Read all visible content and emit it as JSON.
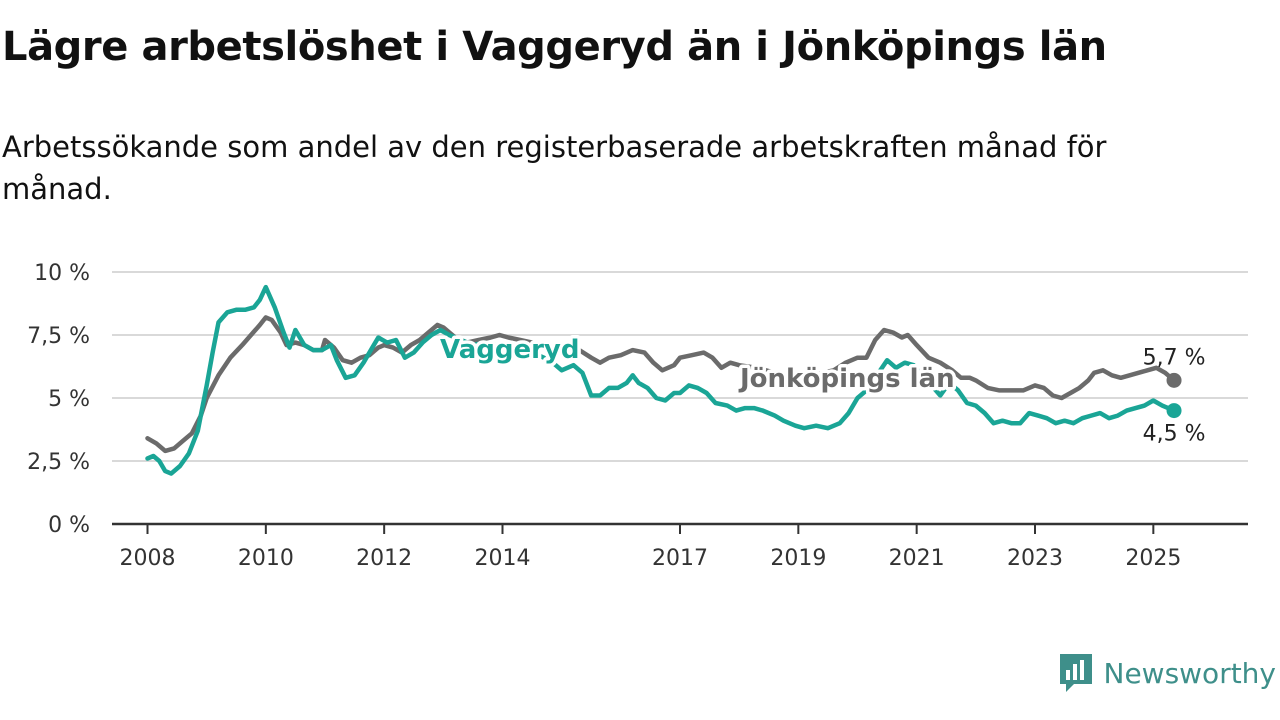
{
  "title": "Lägre arbetslöshet i Vaggeryd än i Jönköpings län",
  "subtitle": "Arbetssökande som andel av den registerbaserade arbetskraften månad för månad.",
  "brand": {
    "name": "Newsworthy",
    "icon": "bar-chart-speech-bubble-icon"
  },
  "colors": {
    "vaggeryd": "#1aa596",
    "lan": "#6b6b6b",
    "grid": "#d9d9d9",
    "axis": "#333333",
    "brand": "#3e8f8a"
  },
  "chart_data": {
    "type": "line",
    "title": "Lägre arbetslöshet i Vaggeryd än i Jönköpings län",
    "subtitle": "Arbetssökande som andel av den registerbaserade arbetskraften månad för månad.",
    "ylim": [
      0,
      10
    ],
    "xlim": [
      2007.4,
      2026.6
    ],
    "y_ticks": [
      {
        "value": 0,
        "label": "0 %"
      },
      {
        "value": 2.5,
        "label": "2,5 %"
      },
      {
        "value": 5,
        "label": "5 %"
      },
      {
        "value": 7.5,
        "label": "7,5 %"
      },
      {
        "value": 10,
        "label": "10 %"
      }
    ],
    "x_ticks": [
      {
        "value": 2008,
        "label": "2008"
      },
      {
        "value": 2010,
        "label": "2010"
      },
      {
        "value": 2012,
        "label": "2012"
      },
      {
        "value": 2014,
        "label": "2014"
      },
      {
        "value": 2017,
        "label": "2017"
      },
      {
        "value": 2019,
        "label": "2019"
      },
      {
        "value": 2021,
        "label": "2021"
      },
      {
        "value": 2023,
        "label": "2023"
      },
      {
        "value": 2025,
        "label": "2025"
      }
    ],
    "grid": true,
    "series": [
      {
        "name": "Jönköpings län",
        "color": "#6b6b6b",
        "end_label": "5,7 %",
        "points": [
          [
            2008.0,
            3.4
          ],
          [
            2008.15,
            3.2
          ],
          [
            2008.3,
            2.9
          ],
          [
            2008.45,
            3.0
          ],
          [
            2008.6,
            3.3
          ],
          [
            2008.75,
            3.6
          ],
          [
            2008.9,
            4.3
          ],
          [
            2009.0,
            5.0
          ],
          [
            2009.2,
            5.9
          ],
          [
            2009.4,
            6.6
          ],
          [
            2009.6,
            7.1
          ],
          [
            2009.75,
            7.5
          ],
          [
            2009.9,
            7.9
          ],
          [
            2010.0,
            8.2
          ],
          [
            2010.1,
            8.1
          ],
          [
            2010.25,
            7.6
          ],
          [
            2010.35,
            7.1
          ],
          [
            2010.5,
            7.2
          ],
          [
            2010.65,
            7.1
          ],
          [
            2010.8,
            6.9
          ],
          [
            2010.95,
            6.9
          ],
          [
            2011.0,
            7.3
          ],
          [
            2011.15,
            7.0
          ],
          [
            2011.3,
            6.5
          ],
          [
            2011.45,
            6.4
          ],
          [
            2011.6,
            6.6
          ],
          [
            2011.75,
            6.7
          ],
          [
            2011.9,
            7.0
          ],
          [
            2012.0,
            7.1
          ],
          [
            2012.15,
            7.0
          ],
          [
            2012.3,
            6.8
          ],
          [
            2012.45,
            7.1
          ],
          [
            2012.6,
            7.3
          ],
          [
            2012.75,
            7.6
          ],
          [
            2012.9,
            7.9
          ],
          [
            2013.0,
            7.8
          ],
          [
            2013.2,
            7.4
          ],
          [
            2013.4,
            7.2
          ],
          [
            2013.6,
            7.3
          ],
          [
            2013.8,
            7.4
          ],
          [
            2013.95,
            7.5
          ],
          [
            2014.1,
            7.4
          ],
          [
            2014.3,
            7.3
          ],
          [
            2014.5,
            7.2
          ],
          [
            2014.7,
            7.1
          ],
          [
            2014.9,
            7.0
          ],
          [
            2015.1,
            7.0
          ],
          [
            2015.3,
            6.9
          ],
          [
            2015.5,
            6.6
          ],
          [
            2015.65,
            6.4
          ],
          [
            2015.8,
            6.6
          ],
          [
            2016.0,
            6.7
          ],
          [
            2016.2,
            6.9
          ],
          [
            2016.4,
            6.8
          ],
          [
            2016.55,
            6.4
          ],
          [
            2016.7,
            6.1
          ],
          [
            2016.9,
            6.3
          ],
          [
            2017.0,
            6.6
          ],
          [
            2017.2,
            6.7
          ],
          [
            2017.4,
            6.8
          ],
          [
            2017.55,
            6.6
          ],
          [
            2017.7,
            6.2
          ],
          [
            2017.85,
            6.4
          ],
          [
            2018.0,
            6.3
          ],
          [
            2018.3,
            6.2
          ],
          [
            2018.6,
            6.0
          ],
          [
            2018.9,
            5.8
          ],
          [
            2019.0,
            5.7
          ],
          [
            2019.2,
            5.8
          ],
          [
            2019.4,
            6.0
          ],
          [
            2019.6,
            6.1
          ],
          [
            2019.8,
            6.4
          ],
          [
            2020.0,
            6.6
          ],
          [
            2020.15,
            6.6
          ],
          [
            2020.3,
            7.3
          ],
          [
            2020.45,
            7.7
          ],
          [
            2020.6,
            7.6
          ],
          [
            2020.75,
            7.4
          ],
          [
            2020.85,
            7.5
          ],
          [
            2021.0,
            7.1
          ],
          [
            2021.2,
            6.6
          ],
          [
            2021.4,
            6.4
          ],
          [
            2021.6,
            6.1
          ],
          [
            2021.75,
            5.8
          ],
          [
            2021.9,
            5.8
          ],
          [
            2022.0,
            5.7
          ],
          [
            2022.2,
            5.4
          ],
          [
            2022.4,
            5.3
          ],
          [
            2022.6,
            5.3
          ],
          [
            2022.8,
            5.3
          ],
          [
            2023.0,
            5.5
          ],
          [
            2023.15,
            5.4
          ],
          [
            2023.3,
            5.1
          ],
          [
            2023.45,
            5.0
          ],
          [
            2023.6,
            5.2
          ],
          [
            2023.75,
            5.4
          ],
          [
            2023.9,
            5.7
          ],
          [
            2024.0,
            6.0
          ],
          [
            2024.15,
            6.1
          ],
          [
            2024.3,
            5.9
          ],
          [
            2024.45,
            5.8
          ],
          [
            2024.6,
            5.9
          ],
          [
            2024.75,
            6.0
          ],
          [
            2024.9,
            6.1
          ],
          [
            2025.05,
            6.2
          ],
          [
            2025.2,
            6.0
          ],
          [
            2025.35,
            5.7
          ]
        ]
      },
      {
        "name": "Vaggeryd",
        "color": "#1aa596",
        "end_label": "4,5 %",
        "points": [
          [
            2008.0,
            2.6
          ],
          [
            2008.1,
            2.7
          ],
          [
            2008.2,
            2.5
          ],
          [
            2008.3,
            2.1
          ],
          [
            2008.4,
            2.0
          ],
          [
            2008.55,
            2.3
          ],
          [
            2008.7,
            2.8
          ],
          [
            2008.85,
            3.7
          ],
          [
            2009.0,
            5.5
          ],
          [
            2009.1,
            6.8
          ],
          [
            2009.2,
            8.0
          ],
          [
            2009.35,
            8.4
          ],
          [
            2009.5,
            8.5
          ],
          [
            2009.65,
            8.5
          ],
          [
            2009.8,
            8.6
          ],
          [
            2009.9,
            8.9
          ],
          [
            2010.0,
            9.4
          ],
          [
            2010.15,
            8.6
          ],
          [
            2010.3,
            7.6
          ],
          [
            2010.4,
            7.0
          ],
          [
            2010.5,
            7.7
          ],
          [
            2010.65,
            7.1
          ],
          [
            2010.8,
            6.9
          ],
          [
            2010.95,
            6.9
          ],
          [
            2011.1,
            7.1
          ],
          [
            2011.2,
            6.5
          ],
          [
            2011.35,
            5.8
          ],
          [
            2011.5,
            5.9
          ],
          [
            2011.65,
            6.4
          ],
          [
            2011.8,
            7.0
          ],
          [
            2011.9,
            7.4
          ],
          [
            2012.05,
            7.2
          ],
          [
            2012.2,
            7.3
          ],
          [
            2012.35,
            6.6
          ],
          [
            2012.5,
            6.8
          ],
          [
            2012.65,
            7.2
          ],
          [
            2012.8,
            7.5
          ],
          [
            2012.95,
            7.7
          ],
          [
            2013.1,
            7.5
          ],
          [
            2013.3,
            7.3
          ],
          [
            2013.5,
            7.1
          ],
          [
            2013.7,
            7.2
          ],
          [
            2013.9,
            7.1
          ],
          [
            2014.1,
            7.0
          ],
          [
            2014.3,
            6.9
          ],
          [
            2014.5,
            6.8
          ],
          [
            2014.7,
            6.6
          ],
          [
            2014.85,
            6.4
          ],
          [
            2015.0,
            6.1
          ],
          [
            2015.2,
            6.3
          ],
          [
            2015.35,
            6.0
          ],
          [
            2015.5,
            5.1
          ],
          [
            2015.65,
            5.1
          ],
          [
            2015.8,
            5.4
          ],
          [
            2015.95,
            5.4
          ],
          [
            2016.1,
            5.6
          ],
          [
            2016.2,
            5.9
          ],
          [
            2016.3,
            5.6
          ],
          [
            2016.45,
            5.4
          ],
          [
            2016.6,
            5.0
          ],
          [
            2016.75,
            4.9
          ],
          [
            2016.9,
            5.2
          ],
          [
            2017.0,
            5.2
          ],
          [
            2017.15,
            5.5
          ],
          [
            2017.3,
            5.4
          ],
          [
            2017.45,
            5.2
          ],
          [
            2017.6,
            4.8
          ],
          [
            2017.8,
            4.7
          ],
          [
            2017.95,
            4.5
          ],
          [
            2018.1,
            4.6
          ],
          [
            2018.25,
            4.6
          ],
          [
            2018.4,
            4.5
          ],
          [
            2018.6,
            4.3
          ],
          [
            2018.75,
            4.1
          ],
          [
            2018.95,
            3.9
          ],
          [
            2019.1,
            3.8
          ],
          [
            2019.3,
            3.9
          ],
          [
            2019.5,
            3.8
          ],
          [
            2019.7,
            4.0
          ],
          [
            2019.85,
            4.4
          ],
          [
            2020.0,
            5.0
          ],
          [
            2020.15,
            5.3
          ],
          [
            2020.3,
            5.8
          ],
          [
            2020.5,
            6.5
          ],
          [
            2020.65,
            6.2
          ],
          [
            2020.8,
            6.4
          ],
          [
            2020.95,
            6.3
          ],
          [
            2021.1,
            5.9
          ],
          [
            2021.25,
            5.5
          ],
          [
            2021.4,
            5.1
          ],
          [
            2021.55,
            5.6
          ],
          [
            2021.7,
            5.3
          ],
          [
            2021.85,
            4.8
          ],
          [
            2022.0,
            4.7
          ],
          [
            2022.15,
            4.4
          ],
          [
            2022.3,
            4.0
          ],
          [
            2022.45,
            4.1
          ],
          [
            2022.6,
            4.0
          ],
          [
            2022.75,
            4.0
          ],
          [
            2022.9,
            4.4
          ],
          [
            2023.05,
            4.3
          ],
          [
            2023.2,
            4.2
          ],
          [
            2023.35,
            4.0
          ],
          [
            2023.5,
            4.1
          ],
          [
            2023.65,
            4.0
          ],
          [
            2023.8,
            4.2
          ],
          [
            2023.95,
            4.3
          ],
          [
            2024.1,
            4.4
          ],
          [
            2024.25,
            4.2
          ],
          [
            2024.4,
            4.3
          ],
          [
            2024.55,
            4.5
          ],
          [
            2024.7,
            4.6
          ],
          [
            2024.85,
            4.7
          ],
          [
            2025.0,
            4.9
          ],
          [
            2025.15,
            4.7
          ],
          [
            2025.35,
            4.5
          ]
        ]
      }
    ]
  }
}
